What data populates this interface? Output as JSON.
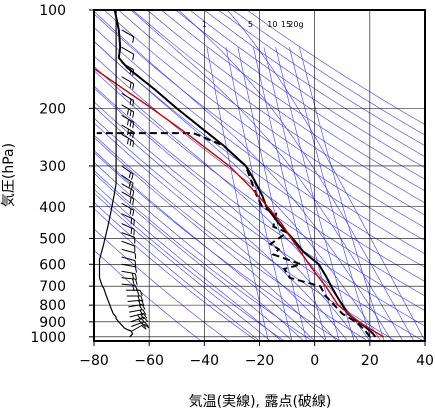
{
  "chart_data": {
    "type": "line",
    "title": "",
    "xlabel": "気温(実線), 露点(破線)",
    "ylabel": "気圧(hPa)",
    "xlim": [
      -80,
      40
    ],
    "ylim": [
      1030,
      100
    ],
    "yscale": "log",
    "x_ticks": [
      -80,
      -60,
      -40,
      -20,
      0,
      20,
      40
    ],
    "x_tick_labels": [
      "−80",
      "−60",
      "−40",
      "−20",
      "0",
      "20",
      "40"
    ],
    "y_ticks": [
      100,
      200,
      300,
      400,
      500,
      600,
      700,
      800,
      900,
      1000
    ],
    "y_tick_labels": [
      "100",
      "200",
      "300",
      "400",
      "500",
      "600",
      "700",
      "800",
      "900",
      "1000"
    ],
    "grid": true,
    "mixing_ratio_labels": [
      "1",
      "5",
      "10",
      "15",
      "20g"
    ],
    "series": [
      {
        "role": "temperature",
        "style": "solid",
        "color": "#000000",
        "points": [
          {
            "t": 22.0,
            "p": 1000
          },
          {
            "t": 21.0,
            "p": 975
          },
          {
            "t": 19.5,
            "p": 950
          },
          {
            "t": 16.0,
            "p": 900
          },
          {
            "t": 12.0,
            "p": 850
          },
          {
            "t": 8.0,
            "p": 750
          },
          {
            "t": 6.0,
            "p": 700
          },
          {
            "t": 4.0,
            "p": 650
          },
          {
            "t": 1.5,
            "p": 600
          },
          {
            "t": -4.0,
            "p": 550
          },
          {
            "t": -8.0,
            "p": 500
          },
          {
            "t": -13.0,
            "p": 450
          },
          {
            "t": -17.5,
            "p": 400
          },
          {
            "t": -19.0,
            "p": 370
          },
          {
            "t": -22.0,
            "p": 330
          },
          {
            "t": -25.0,
            "p": 300
          },
          {
            "t": -33.0,
            "p": 260
          },
          {
            "t": -41.0,
            "p": 230
          },
          {
            "t": -50.0,
            "p": 200
          },
          {
            "t": -58.0,
            "p": 175
          },
          {
            "t": -68.0,
            "p": 150
          },
          {
            "t": -71.0,
            "p": 140
          },
          {
            "t": -70.5,
            "p": 130
          },
          {
            "t": -71.0,
            "p": 115
          },
          {
            "t": -72.5,
            "p": 100
          }
        ]
      },
      {
        "role": "dewpoint",
        "style": "dashed",
        "color": "#000000",
        "points": [
          {
            "t": 20.0,
            "p": 1000
          },
          {
            "t": 19.0,
            "p": 975
          },
          {
            "t": 18.0,
            "p": 950
          },
          {
            "t": 15.0,
            "p": 900
          },
          {
            "t": 10.0,
            "p": 850
          },
          {
            "t": 4.0,
            "p": 750
          },
          {
            "t": 2.0,
            "p": 700
          },
          {
            "t": -9.0,
            "p": 660
          },
          {
            "t": -11.0,
            "p": 620
          },
          {
            "t": -5.0,
            "p": 600
          },
          {
            "t": -15.0,
            "p": 560
          },
          {
            "t": -13.0,
            "p": 540
          },
          {
            "t": -16.0,
            "p": 520
          },
          {
            "t": -10.0,
            "p": 480
          },
          {
            "t": -15.0,
            "p": 460
          },
          {
            "t": -14.0,
            "p": 420
          },
          {
            "t": -19.0,
            "p": 400
          },
          {
            "t": -21.0,
            "p": 370
          },
          {
            "t": -25.0,
            "p": 300
          },
          {
            "t": -33.0,
            "p": 260
          },
          {
            "t": -44.0,
            "p": 238
          },
          {
            "t": -79.0,
            "p": 238
          }
        ]
      },
      {
        "role": "parcel",
        "style": "solid",
        "color": "#cc0000",
        "points": [
          {
            "t": 25.0,
            "p": 1000
          },
          {
            "t": 20.5,
            "p": 950
          },
          {
            "t": 16.0,
            "p": 900
          },
          {
            "t": 8.5,
            "p": 800
          },
          {
            "t": 4.0,
            "p": 700
          },
          {
            "t": 1.0,
            "p": 650
          },
          {
            "t": -2.0,
            "p": 600
          },
          {
            "t": -8.5,
            "p": 500
          },
          {
            "t": -12.0,
            "p": 450
          },
          {
            "t": -17.0,
            "p": 400
          },
          {
            "t": -23.0,
            "p": 350
          },
          {
            "t": -31.0,
            "p": 300
          },
          {
            "t": -46.0,
            "p": 240
          },
          {
            "t": -59.0,
            "p": 200
          },
          {
            "t": -69.0,
            "p": 175
          },
          {
            "t": -80.0,
            "p": 151
          }
        ]
      }
    ],
    "wind_barbs": {
      "x_position": -70,
      "profile_p": [
        1000,
        980,
        960,
        950,
        940,
        930,
        920,
        910,
        900,
        890,
        880,
        870,
        860,
        850,
        830,
        810,
        790,
        770,
        750,
        730,
        710,
        700,
        680,
        660,
        640,
        620,
        600,
        580,
        560,
        540,
        520,
        500,
        480,
        460,
        440,
        420,
        400,
        380,
        360,
        340,
        320,
        300,
        270,
        240,
        230,
        220,
        210,
        200,
        190,
        180,
        170,
        160,
        150,
        140,
        130,
        120,
        110,
        100
      ],
      "profile_t": [
        -67,
        -66,
        -66.5,
        -68,
        -69,
        -69.5,
        -70,
        -70.5,
        -71,
        -71.5,
        -72,
        -72,
        -72.5,
        -73,
        -73.5,
        -74,
        -74.5,
        -75,
        -75.5,
        -76,
        -76.5,
        -77,
        -77.5,
        -78,
        -78,
        -78,
        -78,
        -78,
        -77.5,
        -77,
        -76.5,
        -76,
        -75.5,
        -75,
        -74.5,
        -74,
        -73.5,
        -73,
        -72.5,
        -72,
        -72,
        -72,
        -72,
        -72,
        -72,
        -72,
        -72,
        -72,
        -72,
        -72,
        -72,
        -72,
        -72,
        -72,
        -72,
        -72,
        -72,
        -72
      ],
      "barbs": [
        {
          "p": 960,
          "speed_kt": 20,
          "dir_deg": 240
        },
        {
          "p": 930,
          "speed_kt": 20,
          "dir_deg": 250
        },
        {
          "p": 900,
          "speed_kt": 25,
          "dir_deg": 250
        },
        {
          "p": 870,
          "speed_kt": 25,
          "dir_deg": 255
        },
        {
          "p": 840,
          "speed_kt": 20,
          "dir_deg": 260
        },
        {
          "p": 810,
          "speed_kt": 20,
          "dir_deg": 260
        },
        {
          "p": 780,
          "speed_kt": 20,
          "dir_deg": 265
        },
        {
          "p": 750,
          "speed_kt": 15,
          "dir_deg": 270
        },
        {
          "p": 720,
          "speed_kt": 15,
          "dir_deg": 270
        },
        {
          "p": 690,
          "speed_kt": 15,
          "dir_deg": 275
        },
        {
          "p": 660,
          "speed_kt": 15,
          "dir_deg": 275
        },
        {
          "p": 630,
          "speed_kt": 15,
          "dir_deg": 280
        },
        {
          "p": 600,
          "speed_kt": 10,
          "dir_deg": 280
        },
        {
          "p": 570,
          "speed_kt": 10,
          "dir_deg": 285
        },
        {
          "p": 540,
          "speed_kt": 10,
          "dir_deg": 285
        },
        {
          "p": 510,
          "speed_kt": 10,
          "dir_deg": 290
        },
        {
          "p": 480,
          "speed_kt": 10,
          "dir_deg": 290
        },
        {
          "p": 450,
          "speed_kt": 15,
          "dir_deg": 295
        },
        {
          "p": 420,
          "speed_kt": 15,
          "dir_deg": 295
        },
        {
          "p": 390,
          "speed_kt": 15,
          "dir_deg": 300
        },
        {
          "p": 360,
          "speed_kt": 20,
          "dir_deg": 300
        },
        {
          "p": 340,
          "speed_kt": 20,
          "dir_deg": 300
        },
        {
          "p": 320,
          "speed_kt": 20,
          "dir_deg": 305
        },
        {
          "p": 300,
          "speed_kt": 20,
          "dir_deg": 305
        },
        {
          "p": 240,
          "speed_kt": 25,
          "dir_deg": 300
        },
        {
          "p": 225,
          "speed_kt": 25,
          "dir_deg": 300
        },
        {
          "p": 210,
          "speed_kt": 25,
          "dir_deg": 300
        },
        {
          "p": 195,
          "speed_kt": 25,
          "dir_deg": 300
        },
        {
          "p": 180,
          "speed_kt": 20,
          "dir_deg": 300
        },
        {
          "p": 160,
          "speed_kt": 15,
          "dir_deg": 300
        },
        {
          "p": 145,
          "speed_kt": 15,
          "dir_deg": 300
        },
        {
          "p": 130,
          "speed_kt": 10,
          "dir_deg": 300
        },
        {
          "p": 115,
          "speed_kt": 10,
          "dir_deg": 300
        }
      ]
    },
    "colors": {
      "background_line": "#3a3aff",
      "grid": "#000000",
      "frame": "#000000"
    }
  }
}
